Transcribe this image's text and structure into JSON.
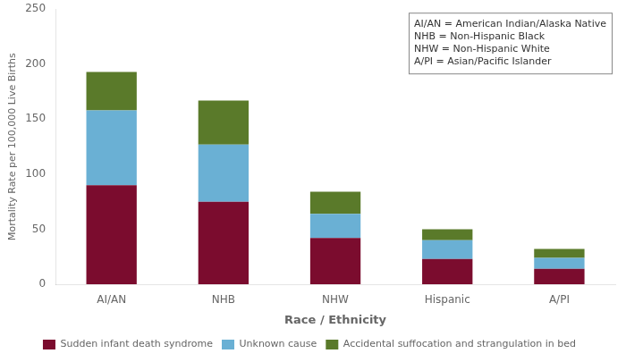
{
  "chart_data": {
    "type": "bar",
    "stacked": true,
    "categories": [
      "AI/AN",
      "NHB",
      "NHW",
      "Hispanic",
      "A/PI"
    ],
    "series": [
      {
        "name": "Sudden infant death syndrome",
        "color": "#7b0c2e",
        "values": [
          90,
          75,
          42,
          23,
          14
        ]
      },
      {
        "name": "Unknown cause",
        "color": "#6ab0d4",
        "values": [
          68,
          52,
          22,
          17,
          10
        ]
      },
      {
        "name": "Accidental suffocation and strangulation in bed",
        "color": "#5a7a2a",
        "values": [
          35,
          40,
          20,
          10,
          8
        ]
      }
    ],
    "xlabel": "Race / Ethnicity",
    "ylabel": "Mortality Rate per 100,000 Live Births",
    "ylim": [
      0,
      250
    ],
    "yticks": [
      0,
      50,
      100,
      150,
      200,
      250
    ],
    "annotations": [
      "AI/AN = American Indian/Alaska Native",
      "NHB = Non-Hispanic Black",
      "NHW = Non-Hispanic White",
      "A/PI = Asian/Pacific Islander"
    ],
    "legend": "bottom",
    "grid": false
  }
}
